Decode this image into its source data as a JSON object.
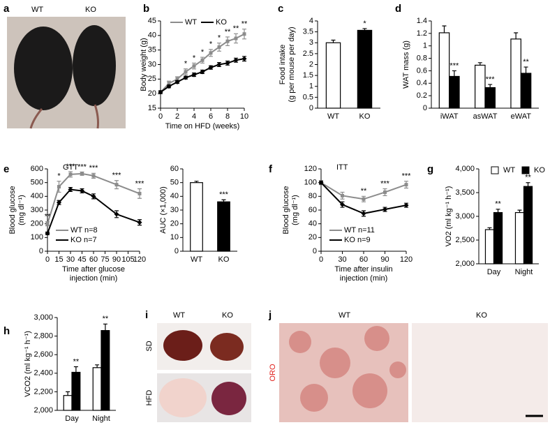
{
  "chart_data": [
    {
      "type": "line",
      "panel": "b",
      "xlabel": [
        "Time on HFD (weeks)"
      ],
      "ylabel": [
        "Body weight (g)"
      ],
      "x": [
        0,
        1,
        2,
        3,
        4,
        5,
        6,
        7,
        8,
        9,
        10
      ],
      "xlim": [
        0,
        10
      ],
      "xticks": [
        0,
        2,
        4,
        6,
        8,
        10
      ],
      "ylim": [
        15,
        45
      ],
      "yticks": [
        15,
        20,
        25,
        30,
        35,
        40,
        45
      ],
      "legend": "top",
      "series": [
        {
          "name": "WT",
          "color": "#8c8c8c",
          "values": [
            20.5,
            23.5,
            25,
            27.5,
            29.5,
            31.5,
            34,
            36,
            38,
            39,
            40.5
          ],
          "errors": [
            0.5,
            0.8,
            0.8,
            1,
            1,
            1,
            1.2,
            1.4,
            1.5,
            1.6,
            1.7
          ]
        },
        {
          "name": "KO",
          "color": "#000000",
          "values": [
            20.5,
            22.5,
            24,
            25.5,
            26.5,
            27.5,
            29,
            30,
            30.5,
            31.5,
            32
          ],
          "errors": [
            0.5,
            0.5,
            0.5,
            0.5,
            0.6,
            0.6,
            0.6,
            0.7,
            0.7,
            0.7,
            0.8
          ]
        }
      ],
      "annotations": [
        null,
        null,
        null,
        "*",
        "*",
        "*",
        "*",
        "*",
        "**",
        "**",
        "**"
      ]
    },
    {
      "type": "bar",
      "panel": "c",
      "ylabel": [
        "Food intake",
        "(g per mouse per day)"
      ],
      "categories": [
        "WT",
        "KO"
      ],
      "values": [
        3.0,
        3.57
      ],
      "errors": [
        0.12,
        0.08
      ],
      "colors": [
        "#ffffff",
        "#000000"
      ],
      "annotations": [
        null,
        "*"
      ],
      "ylim": [
        0,
        4
      ],
      "yticks": [
        0,
        0.5,
        1,
        1.5,
        2,
        2.5,
        3,
        3.5,
        4
      ]
    },
    {
      "type": "bar",
      "panel": "d",
      "ylabel": [
        "WAT mass (g)"
      ],
      "categories": [
        "iWAT",
        "asWAT",
        "eWAT"
      ],
      "series": [
        {
          "color": "#ffffff",
          "values": [
            1.21,
            0.69,
            1.11
          ],
          "errors": [
            0.11,
            0.04,
            0.1
          ]
        },
        {
          "color": "#000000",
          "values": [
            0.51,
            0.33,
            0.56
          ],
          "errors": [
            0.09,
            0.05,
            0.1
          ],
          "annotations": [
            "***",
            "***",
            "**"
          ]
        }
      ],
      "ylim": [
        0,
        1.4
      ],
      "yticks": [
        0,
        0.2,
        0.4,
        0.6,
        0.8,
        1,
        1.2,
        1.4
      ]
    },
    {
      "type": "line",
      "panel": "e",
      "title": "GTT",
      "xlabel": [
        "Time after glucose",
        "injection (min)"
      ],
      "ylabel": [
        "Blood glucose",
        "(mg dl⁻¹)"
      ],
      "x": [
        0,
        15,
        30,
        45,
        60,
        90,
        120
      ],
      "xlim": [
        0,
        120
      ],
      "xticks": [
        0,
        15,
        30,
        45,
        60,
        75,
        90,
        105,
        120
      ],
      "ylim": [
        0,
        600
      ],
      "yticks": [
        0,
        100,
        200,
        300,
        400,
        500,
        600
      ],
      "legend": "lower-left",
      "series": [
        {
          "name": "WT n=8",
          "color": "#8c8c8c",
          "values": [
            200,
            470,
            560,
            565,
            550,
            485,
            420
          ],
          "errors": [
            15,
            40,
            20,
            12,
            18,
            30,
            35
          ]
        },
        {
          "name": "KO n=7",
          "color": "#000000",
          "values": [
            130,
            355,
            450,
            440,
            400,
            270,
            210
          ],
          "errors": [
            10,
            15,
            15,
            15,
            18,
            25,
            20
          ]
        }
      ],
      "annotations": [
        "**",
        "*",
        "***",
        "***",
        "***",
        "***",
        "***"
      ]
    },
    {
      "type": "bar",
      "ylabel": [
        "AUC (×1,000)"
      ],
      "categories": [
        "WT",
        "KO"
      ],
      "values": [
        50,
        36
      ],
      "errors": [
        1,
        1.5
      ],
      "colors": [
        "#ffffff",
        "#000000"
      ],
      "annotations": [
        null,
        "***"
      ],
      "ylim": [
        0,
        60
      ],
      "yticks": [
        0,
        10,
        20,
        30,
        40,
        50,
        60
      ]
    },
    {
      "type": "line",
      "panel": "f",
      "title": "ITT",
      "xlabel": [
        "Time after insulin",
        "injection (min)"
      ],
      "ylabel": [
        "Blood glucose",
        "(mg dl⁻¹)"
      ],
      "x": [
        0,
        30,
        60,
        90,
        120
      ],
      "xlim": [
        0,
        120
      ],
      "xticks": [
        0,
        30,
        60,
        90,
        120
      ],
      "ylim": [
        0,
        120
      ],
      "yticks": [
        0,
        20,
        40,
        60,
        80,
        100,
        120
      ],
      "legend": "lower-left",
      "series": [
        {
          "name": "WT n=11",
          "color": "#8c8c8c",
          "values": [
            100,
            81,
            76,
            86,
            97
          ],
          "errors": [
            3,
            5,
            4,
            5,
            5
          ]
        },
        {
          "name": "KO n=9",
          "color": "#000000",
          "values": [
            100,
            68,
            55,
            61,
            67
          ],
          "errors": [
            2,
            4,
            4,
            3,
            3
          ]
        }
      ],
      "annotations": [
        null,
        null,
        "**",
        "***",
        "***"
      ]
    },
    {
      "type": "bar",
      "panel": "g",
      "ylabel": [
        "VO2 (ml kg⁻¹ h⁻¹)"
      ],
      "categories": [
        "Day",
        "Night"
      ],
      "legend": "top",
      "series": [
        {
          "name": "WT",
          "color": "#ffffff",
          "values": [
            2720,
            3080
          ],
          "errors": [
            40,
            50
          ]
        },
        {
          "name": "KO",
          "color": "#000000",
          "values": [
            3080,
            3630
          ],
          "errors": [
            70,
            80
          ],
          "annotations": [
            "**",
            "**"
          ]
        }
      ],
      "ylim": [
        2000,
        4000
      ],
      "yticks": [
        {
          "value": 2000,
          "label": "2,000"
        },
        {
          "value": 2500,
          "label": "2,500"
        },
        {
          "value": 3000,
          "label": "3,000"
        },
        {
          "value": 3500,
          "label": "3,500"
        },
        {
          "value": 4000,
          "label": "4,000"
        }
      ]
    },
    {
      "type": "bar",
      "panel": "h",
      "ylabel": [
        "VCO2 (ml kg⁻¹ h⁻¹)"
      ],
      "categories": [
        "Day",
        "Night"
      ],
      "series": [
        {
          "color": "#ffffff",
          "values": [
            2160,
            2460
          ],
          "errors": [
            40,
            30
          ]
        },
        {
          "color": "#000000",
          "values": [
            2410,
            2860
          ],
          "errors": [
            60,
            70
          ],
          "annotations": [
            "**",
            "**"
          ]
        }
      ],
      "ylim": [
        2000,
        3000
      ],
      "yticks": [
        {
          "value": 2000,
          "label": "2,000"
        },
        {
          "value": 2200,
          "label": "2,200"
        },
        {
          "value": 2400,
          "label": "2,400"
        },
        {
          "value": 2600,
          "label": "2,600"
        },
        {
          "value": 2800,
          "label": "2,800"
        },
        {
          "value": 3000,
          "label": "3,000"
        }
      ]
    }
  ],
  "photos": {
    "a": {
      "panel": "a",
      "labels": [
        "WT",
        "KO"
      ]
    },
    "i": {
      "panel": "i",
      "columns": [
        "WT",
        "KO"
      ],
      "rows": [
        "SD",
        "HFD"
      ]
    },
    "j": {
      "panel": "j",
      "columns": [
        "WT",
        "KO"
      ],
      "stain": "ORO"
    }
  }
}
